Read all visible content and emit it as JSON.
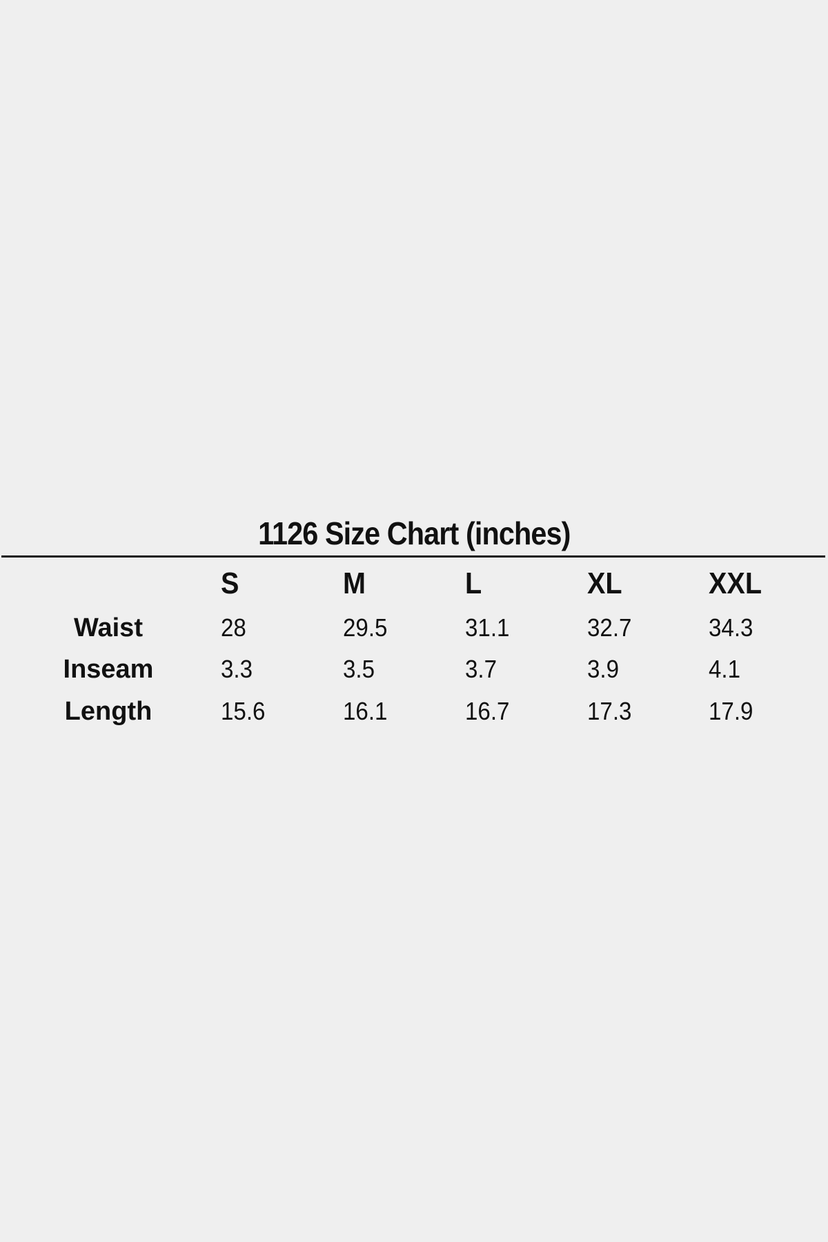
{
  "title": "1126 Size Chart (inches)",
  "columns": [
    "S",
    "M",
    "L",
    "XL",
    "XXL"
  ],
  "rows": [
    {
      "label": "Waist",
      "values": [
        "28",
        "29.5",
        "31.1",
        "32.7",
        "34.3"
      ]
    },
    {
      "label": "Inseam",
      "values": [
        "3.3",
        "3.5",
        "3.7",
        "3.9",
        "4.1"
      ]
    },
    {
      "label": "Length",
      "values": [
        "15.6",
        "16.1",
        "16.7",
        "17.3",
        "17.9"
      ]
    }
  ],
  "colors": {
    "background": "#efefef",
    "text": "#111111"
  }
}
